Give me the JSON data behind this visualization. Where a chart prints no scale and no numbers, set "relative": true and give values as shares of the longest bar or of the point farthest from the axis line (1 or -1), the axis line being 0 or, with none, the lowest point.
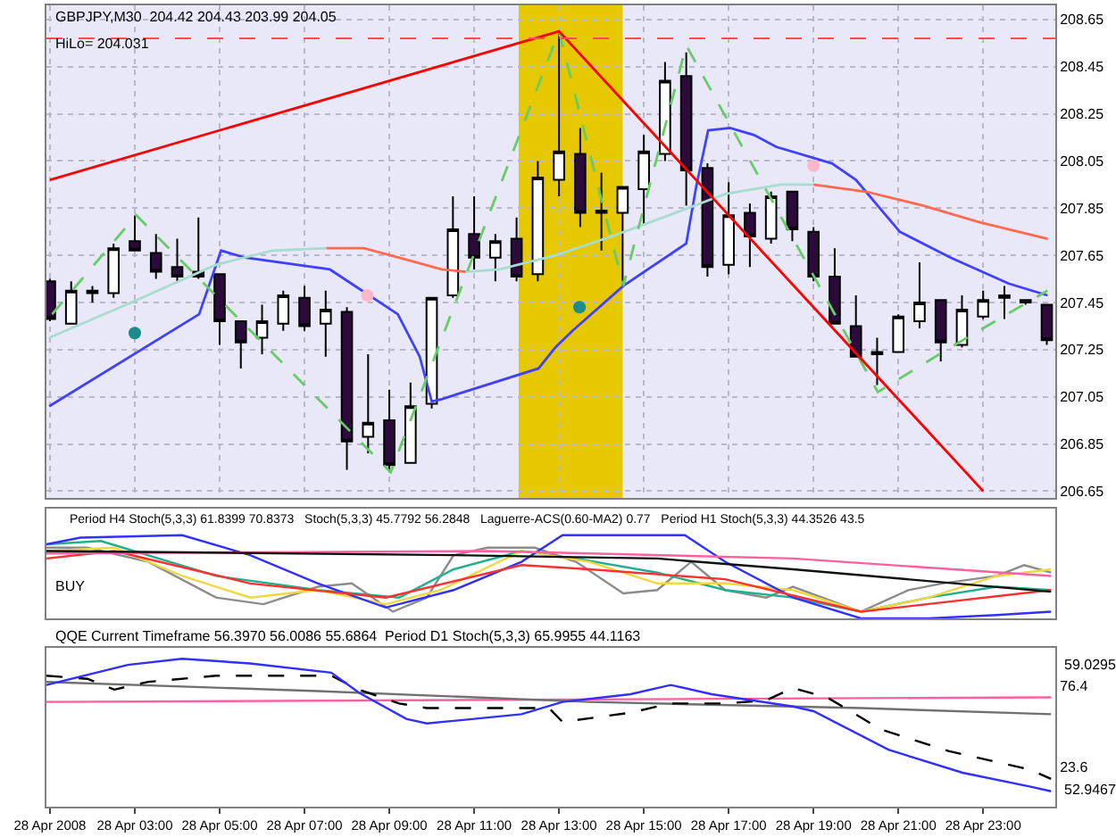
{
  "chart_data": [
    {
      "type": "candlestick",
      "annotations": [
        "GBPJPY,M30  204.42 204.43 203.99 204.05",
        "HiLo= 204.031"
      ],
      "x": [
        "2008-04-28T01:00",
        "2008-04-28T01:30",
        "2008-04-28T02:00",
        "2008-04-28T02:30",
        "2008-04-28T03:00",
        "2008-04-28T03:30",
        "2008-04-28T04:00",
        "2008-04-28T04:30",
        "2008-04-28T05:00",
        "2008-04-28T05:30",
        "2008-04-28T06:00",
        "2008-04-28T06:30",
        "2008-04-28T07:00",
        "2008-04-28T07:30",
        "2008-04-28T08:00",
        "2008-04-28T08:30",
        "2008-04-28T09:00",
        "2008-04-28T09:30",
        "2008-04-28T10:00",
        "2008-04-28T10:30",
        "2008-04-28T11:00",
        "2008-04-28T11:30",
        "2008-04-28T12:00",
        "2008-04-28T12:30",
        "2008-04-28T13:00",
        "2008-04-28T13:30",
        "2008-04-28T14:00",
        "2008-04-28T14:30",
        "2008-04-28T15:00",
        "2008-04-28T15:30",
        "2008-04-28T16:00",
        "2008-04-28T16:30",
        "2008-04-28T17:00",
        "2008-04-28T17:30",
        "2008-04-28T18:00",
        "2008-04-28T18:30",
        "2008-04-28T19:00",
        "2008-04-28T19:30",
        "2008-04-28T20:00",
        "2008-04-28T20:30",
        "2008-04-28T21:00",
        "2008-04-28T21:30",
        "2008-04-28T22:00",
        "2008-04-28T22:30",
        "2008-04-28T23:00",
        "2008-04-28T23:30",
        "2008-04-29T00:00",
        "2008-04-29T00:30"
      ],
      "ohlc": [
        [
          207.54,
          207.55,
          207.37,
          207.38
        ],
        [
          207.36,
          207.54,
          207.36,
          207.5
        ],
        [
          207.49,
          207.52,
          207.45,
          207.5
        ],
        [
          207.49,
          207.7,
          207.47,
          207.68
        ],
        [
          207.71,
          207.82,
          207.67,
          207.67
        ],
        [
          207.66,
          207.74,
          207.55,
          207.58
        ],
        [
          207.6,
          207.72,
          207.54,
          207.56
        ],
        [
          207.58,
          207.81,
          207.55,
          207.56
        ],
        [
          207.57,
          207.57,
          207.27,
          207.37
        ],
        [
          207.37,
          207.37,
          207.17,
          207.28
        ],
        [
          207.3,
          207.44,
          207.23,
          207.37
        ],
        [
          207.36,
          207.5,
          207.33,
          207.48
        ],
        [
          207.47,
          207.52,
          207.33,
          207.35
        ],
        [
          207.36,
          207.5,
          207.22,
          207.42
        ],
        [
          207.41,
          207.43,
          206.74,
          206.86
        ],
        [
          206.88,
          207.23,
          206.81,
          206.94
        ],
        [
          206.95,
          207.08,
          206.73,
          206.76
        ],
        [
          206.77,
          207.11,
          206.77,
          207.01
        ],
        [
          207.02,
          207.47,
          207.0,
          207.47
        ],
        [
          207.48,
          207.9,
          207.47,
          207.76
        ],
        [
          207.74,
          207.9,
          207.59,
          207.64
        ],
        [
          207.64,
          207.74,
          207.54,
          207.71
        ],
        [
          207.72,
          207.81,
          207.54,
          207.56
        ],
        [
          207.57,
          208.05,
          207.54,
          207.98
        ],
        [
          207.97,
          208.6,
          207.9,
          208.09
        ],
        [
          208.08,
          208.19,
          207.77,
          207.83
        ],
        [
          207.83,
          208.0,
          207.67,
          207.84
        ],
        [
          207.83,
          207.94,
          207.52,
          207.94
        ],
        [
          207.93,
          208.16,
          207.78,
          208.09
        ],
        [
          208.08,
          208.47,
          208.05,
          208.39
        ],
        [
          208.41,
          208.51,
          207.86,
          208.01
        ],
        [
          208.02,
          208.04,
          207.56,
          207.6
        ],
        [
          207.61,
          207.96,
          207.57,
          207.82
        ],
        [
          207.83,
          207.87,
          207.6,
          207.73
        ],
        [
          207.72,
          207.92,
          207.7,
          207.9
        ],
        [
          207.92,
          207.92,
          207.71,
          207.76
        ],
        [
          207.75,
          207.77,
          207.54,
          207.56
        ],
        [
          207.56,
          207.68,
          207.36,
          207.36
        ],
        [
          207.35,
          207.48,
          207.22,
          207.22
        ],
        [
          207.24,
          207.3,
          207.1,
          207.23
        ],
        [
          207.24,
          207.4,
          207.24,
          207.39
        ],
        [
          207.37,
          207.62,
          207.34,
          207.45
        ],
        [
          207.46,
          207.46,
          207.2,
          207.28
        ],
        [
          207.27,
          207.48,
          207.26,
          207.42
        ],
        [
          207.39,
          207.5,
          207.38,
          207.46
        ],
        [
          207.47,
          207.52,
          207.38,
          207.48
        ],
        [
          207.46,
          207.46,
          207.44,
          207.45
        ],
        [
          207.44,
          207.44,
          207.27,
          207.29
        ]
      ],
      "series": [
        {
          "type": "line",
          "color": "#4040ff",
          "x": [
            "2008-04-28T00:59",
            "2008-04-28T04:31",
            "2008-04-28T05:02",
            "2008-04-28T05:36",
            "2008-04-28T07:36",
            "2008-04-28T09:12",
            "2008-04-28T09:43",
            "2008-04-28T10:00",
            "2008-04-28T10:14",
            "2008-04-28T12:31",
            "2008-04-28T12:55",
            "2008-04-28T13:19",
            "2008-04-28T14:31",
            "2008-04-28T16:00",
            "2008-04-28T16:14",
            "2008-04-28T16:31",
            "2008-04-28T17:02",
            "2008-04-28T17:36",
            "2008-04-28T18:07",
            "2008-04-28T19:26",
            "2008-04-28T20:00",
            "2008-04-28T21:02",
            "2008-04-28T22:14",
            "2008-04-28T23:36",
            "2008-04-29T00:31"
          ],
          "values": [
            207.01,
            207.4,
            207.67,
            207.64,
            207.59,
            207.4,
            207.22,
            207.03,
            207.04,
            207.17,
            207.26,
            207.33,
            207.52,
            207.7,
            207.94,
            208.18,
            208.19,
            208.16,
            208.11,
            208.04,
            207.97,
            207.75,
            207.64,
            207.53,
            207.48
          ]
        },
        {
          "type": "line",
          "color": "#a8dcd0",
          "x": [
            "2008-04-28T00:59",
            "2008-04-28T02:55",
            "2008-04-28T04:55",
            "2008-04-28T06:14",
            "2008-04-28T07:31",
            "2008-04-28T09:00",
            "2008-04-28T10:48",
            "2008-04-28T11:36",
            "2008-04-28T12:55",
            "2008-04-28T14:14",
            "2008-04-28T15:36",
            "2008-04-28T16:55",
            "2008-04-28T18:14",
            "2008-04-28T19:00"
          ],
          "values": [
            207.3,
            207.45,
            207.61,
            207.67,
            207.68,
            null,
            207.58,
            207.59,
            207.65,
            207.73,
            207.82,
            207.91,
            207.95,
            207.95
          ]
        },
        {
          "type": "line",
          "color": "#ff6a50",
          "x": [
            "2008-04-28T07:31",
            "2008-04-28T08:24",
            "2008-04-28T09:26",
            "2008-04-28T10:14",
            "2008-04-28T10:48",
            "2008-04-28T15:00",
            "2008-04-28T19:00",
            "2008-04-28T20:14",
            "2008-04-28T21:36",
            "2008-04-28T22:55",
            "2008-04-29T00:31"
          ],
          "values": [
            207.68,
            207.68,
            207.63,
            207.59,
            207.58,
            null,
            207.95,
            207.92,
            207.86,
            207.79,
            207.72
          ]
        },
        {
          "type": "line",
          "color": "#66cc66",
          "line_style": "dashed",
          "x": [
            "2008-04-28T01:03",
            "2008-04-28T03:02",
            "2008-04-28T09:02",
            "2008-04-28T13:00",
            "2008-04-28T14:31",
            "2008-04-28T16:00",
            "2008-04-28T20:31",
            "2008-04-28T22:14",
            "2008-04-29T00:31"
          ],
          "values": [
            207.4,
            207.82,
            206.73,
            208.6,
            207.52,
            208.54,
            207.07,
            207.26,
            207.5
          ]
        },
        {
          "type": "line",
          "color": "#ff0000",
          "x": [
            "2008-04-28T01:00",
            "2008-04-28T13:00",
            "2008-04-28T23:00"
          ],
          "values": [
            207.97,
            208.6,
            206.65
          ]
        },
        {
          "type": "scatter",
          "color": "#1a8c8c",
          "marker": "circle",
          "x": [
            "2008-04-28T03:00",
            "2008-04-28T13:29"
          ],
          "values": [
            207.32,
            207.43
          ]
        },
        {
          "type": "scatter",
          "color": "#ffb6c8",
          "marker": "circle",
          "x": [
            "2008-04-28T08:29",
            "2008-04-28T19:00"
          ],
          "values": [
            207.48,
            208.03
          ]
        }
      ],
      "ref_lines": [
        {
          "axis": "y",
          "value": 208.57,
          "color": "#ff4d4d",
          "line_style": "dashed"
        }
      ],
      "bands": [
        {
          "axis": "x",
          "from": "2008-04-28T12:03",
          "to": "2008-04-28T14:30",
          "color": "#e6c800"
        }
      ],
      "xlim": [
        "2008-04-28T00:55",
        "2008-04-29T00:42"
      ],
      "ylim": [
        206.62,
        208.71
      ],
      "yticks": [
        206.65,
        206.85,
        207.05,
        207.25,
        207.45,
        207.65,
        207.85,
        208.05,
        208.25,
        208.45,
        208.65
      ],
      "grid": true,
      "tick_labels": "y"
    },
    {
      "type": "line",
      "relative": true,
      "tick_labels": false,
      "xlim": [
        "2008-04-28T00:55",
        "2008-04-29T00:42"
      ],
      "annotations": [
        "Period H4 Stoch(5,3,3) 61.8399 70.8373",
        "Stoch(5,3,3) 45.7792 56.2848",
        "Laguerre-ACS(0.60-MA2) 0.77",
        "Period H1 Stoch(5,3,3) 44.3526 43.5",
        "BUY"
      ],
      "series": [
        {
          "color": "#8c8c8c",
          "x": [
            "2008-04-28T00:55",
            "2008-04-28T01:53",
            "2008-04-28T03:19",
            "2008-04-28T04:55",
            "2008-04-28T06:02",
            "2008-04-28T07:19",
            "2008-04-28T08:07",
            "2008-04-28T09:05",
            "2008-04-28T09:53",
            "2008-04-28T10:31",
            "2008-04-28T11:19",
            "2008-04-28T12:26",
            "2008-04-28T13:24",
            "2008-04-28T14:31",
            "2008-04-28T15:19",
            "2008-04-28T16:07",
            "2008-04-28T16:55",
            "2008-04-28T17:53",
            "2008-04-28T18:31",
            "2008-04-28T20:07",
            "2008-04-28T21:14",
            "2008-04-28T22:02",
            "2008-04-28T23:19",
            "2008-04-28T23:58",
            "2008-04-29T00:36"
          ],
          "values": [
            0.85,
            0.85,
            0.68,
            0.25,
            0.17,
            0.38,
            0.42,
            0.08,
            0.25,
            0.76,
            0.85,
            0.85,
            0.68,
            0.3,
            0.34,
            0.68,
            0.34,
            0.25,
            0.38,
            0.08,
            0.34,
            0.42,
            0.51,
            0.64,
            0.55
          ]
        },
        {
          "color": "#20b090",
          "x": [
            "2008-04-28T00:55",
            "2008-04-28T02:12",
            "2008-04-28T04:55",
            "2008-04-28T07:19",
            "2008-04-28T09:14",
            "2008-04-28T10:31",
            "2008-04-28T12:07",
            "2008-04-28T13:24",
            "2008-04-28T15:19",
            "2008-04-28T16:55",
            "2008-04-28T18:31",
            "2008-04-28T20:07",
            "2008-04-28T21:43",
            "2008-04-28T23:19",
            "2008-04-29T00:36"
          ],
          "values": [
            0.89,
            0.93,
            0.51,
            0.34,
            0.25,
            0.59,
            0.81,
            0.72,
            0.55,
            0.34,
            0.25,
            0.08,
            0.25,
            0.38,
            0.34
          ]
        },
        {
          "color": "#f0d840",
          "x": [
            "2008-04-28T00:55",
            "2008-04-28T02:31",
            "2008-04-28T04:07",
            "2008-04-28T05:43",
            "2008-04-28T07:19",
            "2008-04-28T08:55",
            "2008-04-28T10:12",
            "2008-04-28T12:07",
            "2008-04-28T13:43",
            "2008-04-28T15:19",
            "2008-04-28T16:55",
            "2008-04-28T18:31",
            "2008-04-28T20:07",
            "2008-04-28T21:43",
            "2008-04-28T23:19",
            "2008-04-29T00:36"
          ],
          "values": [
            0.81,
            0.85,
            0.51,
            0.25,
            0.34,
            0.17,
            0.34,
            0.81,
            0.68,
            0.42,
            0.42,
            0.34,
            0.08,
            0.25,
            0.51,
            0.59
          ]
        },
        {
          "color": "#3030ff",
          "x": [
            "2008-04-28T00:55",
            "2008-04-28T01:43",
            "2008-04-28T04:07",
            "2008-04-28T05:43",
            "2008-04-28T07:19",
            "2008-04-28T08:55",
            "2008-04-28T10:31",
            "2008-04-28T12:07",
            "2008-04-28T13:05",
            "2008-04-28T15:58",
            "2008-04-28T16:55",
            "2008-04-28T18:31",
            "2008-04-28T20:07",
            "2008-04-28T21:43",
            "2008-04-28T23:19",
            "2008-04-29T00:36"
          ],
          "values": [
            0.89,
            0.97,
            1.0,
            0.76,
            0.42,
            0.13,
            0.34,
            0.68,
            1.0,
            1.0,
            0.68,
            0.25,
            0.0,
            0.0,
            0.04,
            0.08
          ]
        },
        {
          "color": "#ff3030",
          "x": [
            "2008-04-28T00:55",
            "2008-04-28T02:31",
            "2008-04-28T05:43",
            "2008-04-28T08:55",
            "2008-04-28T12:07",
            "2008-04-28T13:43",
            "2008-04-28T16:55",
            "2008-04-28T20:07",
            "2008-04-29T00:36"
          ],
          "values": [
            0.72,
            0.81,
            0.42,
            0.25,
            0.64,
            0.59,
            0.47,
            0.08,
            0.34
          ]
        },
        {
          "color": "#ff60a0",
          "x": [
            "2008-04-28T00:55",
            "2008-04-28T11:19",
            "2008-04-28T18:31",
            "2008-04-29T00:36"
          ],
          "values": [
            0.78,
            0.81,
            0.72,
            0.51
          ]
        },
        {
          "color": "#101010",
          "x": [
            "2008-04-28T00:55",
            "2008-04-28T10:31",
            "2008-04-28T15:19",
            "2008-04-28T18:31",
            "2008-04-29T00:36"
          ],
          "values": [
            0.81,
            0.76,
            0.72,
            0.59,
            0.32
          ]
        }
      ]
    },
    {
      "type": "line",
      "xlim": [
        "2008-04-28T00:55",
        "2008-04-29T00:42"
      ],
      "ylim": [
        -2,
        101
      ],
      "yticks": [
        23.6,
        76.4
      ],
      "annotations": [
        "QQE Current Timeframe 56.3970 56.0086 55.6864  Period D1 Stoch(5,3,3) 65.9955 44.1163",
        "59.0295",
        "52.9467"
      ],
      "xticks": [
        {
          "value": "2008-04-28T01:00",
          "label": "28 Apr 2008"
        },
        {
          "value": "2008-04-28T03:00",
          "label": "28 Apr 03:00"
        },
        {
          "value": "2008-04-28T05:00",
          "label": "28 Apr 05:00"
        },
        {
          "value": "2008-04-28T07:00",
          "label": "28 Apr 07:00"
        },
        {
          "value": "2008-04-28T09:00",
          "label": "28 Apr 09:00"
        },
        {
          "value": "2008-04-28T11:00",
          "label": "28 Apr 11:00"
        },
        {
          "value": "2008-04-28T13:00",
          "label": "28 Apr 13:00"
        },
        {
          "value": "2008-04-28T15:00",
          "label": "28 Apr 15:00"
        },
        {
          "value": "2008-04-28T17:00",
          "label": "28 Apr 17:00"
        },
        {
          "value": "2008-04-28T19:00",
          "label": "28 Apr 19:00"
        },
        {
          "value": "2008-04-28T21:00",
          "label": "28 Apr 21:00"
        },
        {
          "value": "2008-04-28T23:00",
          "label": "28 Apr 23:00"
        }
      ],
      "series": [
        {
          "color": "#ff60a0",
          "x": [
            "2008-04-28T00:55",
            "2008-04-29T00:36"
          ],
          "values": [
            66,
            69
          ]
        },
        {
          "color": "#707070",
          "x": [
            "2008-04-28T00:55",
            "2008-04-28T07:19",
            "2008-04-28T13:43",
            "2008-04-28T20:07",
            "2008-04-29T00:36"
          ],
          "values": [
            79,
            73,
            66,
            62,
            58
          ]
        },
        {
          "color": "#000000",
          "line_style": "dashed",
          "x": [
            "2008-04-28T00:55",
            "2008-04-28T01:53",
            "2008-04-28T02:31",
            "2008-04-28T03:19",
            "2008-04-28T04:55",
            "2008-04-28T07:38",
            "2008-04-28T08:17",
            "2008-04-28T09:14",
            "2008-04-28T09:53",
            "2008-04-28T12:46",
            "2008-04-28T13:05",
            "2008-04-28T14:41",
            "2008-04-28T15:38",
            "2008-04-28T16:55",
            "2008-04-28T17:53",
            "2008-04-28T18:31",
            "2008-04-28T19:19",
            "2008-04-28T20:36",
            "2008-04-28T22:12",
            "2008-04-29T00:07",
            "2008-04-29T00:36"
          ],
          "values": [
            83,
            81,
            74,
            79,
            83,
            83,
            74,
            65,
            62,
            62,
            53,
            59,
            65,
            65,
            67,
            75,
            69,
            48,
            34,
            22,
            16
          ]
        },
        {
          "color": "#3030ff",
          "x": [
            "2008-04-28T00:55",
            "2008-04-28T02:50",
            "2008-04-28T04:07",
            "2008-04-28T05:43",
            "2008-04-28T07:38",
            "2008-04-28T08:17",
            "2008-04-28T09:24",
            "2008-04-28T09:53",
            "2008-04-28T12:07",
            "2008-04-28T13:05",
            "2008-04-28T14:41",
            "2008-04-28T15:38",
            "2008-04-28T16:36",
            "2008-04-28T18:31",
            "2008-04-28T19:00",
            "2008-04-28T20:46",
            "2008-04-28T22:31",
            "2008-04-29T00:07",
            "2008-04-29T00:36"
          ],
          "values": [
            77,
            90,
            94,
            91,
            85,
            72,
            55,
            52,
            58,
            66,
            71,
            77,
            71,
            63,
            60,
            35,
            20,
            11,
            8
          ]
        }
      ]
    }
  ]
}
